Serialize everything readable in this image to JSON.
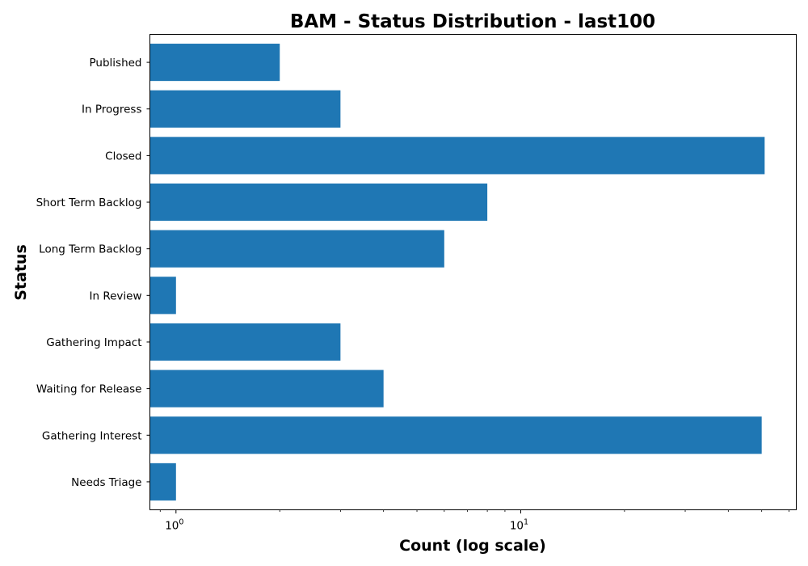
{
  "chart_data": {
    "type": "bar",
    "orientation": "horizontal",
    "title": "BAM - Status Distribution - last100",
    "xlabel": "Count (log scale)",
    "ylabel": "Status",
    "x_scale": "log",
    "xlim": [
      0.84,
      63
    ],
    "x_major_ticks": [
      {
        "value": 1,
        "base": "10",
        "exponent": "0"
      },
      {
        "value": 10,
        "base": "10",
        "exponent": "1"
      }
    ],
    "categories": [
      "Needs Triage",
      "Gathering Interest",
      "Waiting for Release",
      "Gathering Impact",
      "In Review",
      "Long Term Backlog",
      "Short Term Backlog",
      "Closed",
      "In Progress",
      "Published"
    ],
    "values": [
      1,
      50,
      4,
      3,
      1,
      6,
      8,
      51,
      3,
      2
    ],
    "bar_color": "#1f77b4",
    "grid": false,
    "legend": "none"
  }
}
